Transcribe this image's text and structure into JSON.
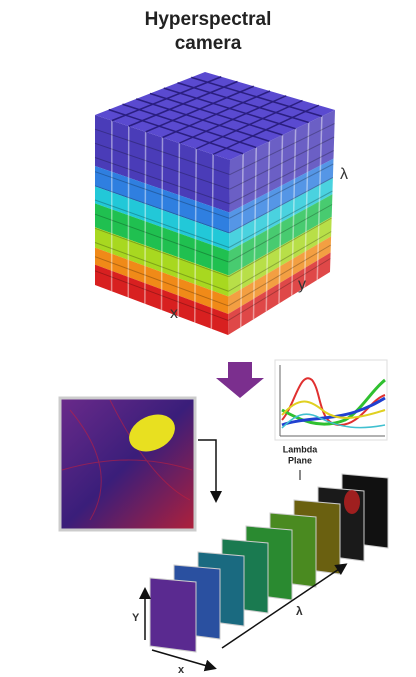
{
  "header": {
    "title": [
      "Hyperspectral",
      "camera"
    ]
  },
  "cube": {
    "labels": {
      "lambda": "λ",
      "y": "y",
      "x": "x"
    }
  },
  "stack": {
    "plane_label": [
      "Lambda",
      "Plane"
    ],
    "axes": {
      "y": "Y",
      "x": "x",
      "lambda": "λ"
    }
  }
}
